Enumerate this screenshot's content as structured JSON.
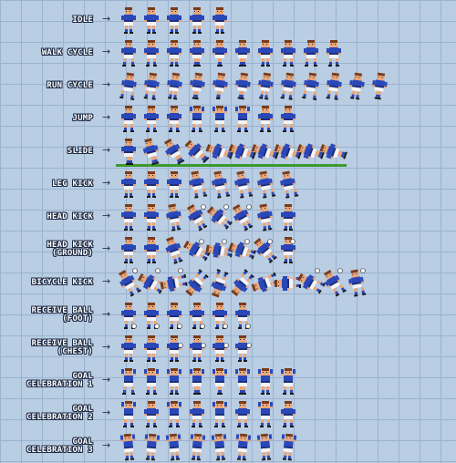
{
  "sheet": {
    "arrow": "→",
    "palette": {
      "hair": "#7a3b1a",
      "skin": "#e8a77a",
      "shirt": "#2a47b8",
      "shirt_dark": "#1b2f7c",
      "shorts": "#f4f4f4",
      "socks": "#2a47b8",
      "boots": "#1a1a1a",
      "grass": "#3c9a2e",
      "ball": "#ffffff"
    },
    "animations": [
      {
        "label": "IDLE",
        "frames": 5,
        "pose": "idle",
        "icon": "player-idle-sprite"
      },
      {
        "label": "WALK CYCLE",
        "frames": 10,
        "pose": "walk",
        "icon": "player-walk-sprite"
      },
      {
        "label": "RUN CYCLE",
        "frames": 12,
        "pose": "run",
        "icon": "player-run-sprite"
      },
      {
        "label": "JUMP",
        "frames": 8,
        "pose": "jump",
        "icon": "player-jump-sprite"
      },
      {
        "label": "SLIDE",
        "frames": 10,
        "pose": "slide",
        "icon": "player-slide-sprite"
      },
      {
        "label": "LEG KICK",
        "frames": 8,
        "pose": "kick",
        "icon": "player-leg-kick-sprite"
      },
      {
        "label": "HEAD KICK",
        "frames": 8,
        "pose": "head",
        "icon": "player-head-kick-sprite"
      },
      {
        "label": "HEAD KICK\n(GROUND)",
        "frames": 8,
        "pose": "headground",
        "icon": "player-head-kick-ground-sprite"
      },
      {
        "label": "BICYCLE KICK",
        "frames": 11,
        "pose": "bicycle",
        "icon": "player-bicycle-kick-sprite"
      },
      {
        "label": "RECEIVE BALL\n(FOOT)",
        "frames": 6,
        "pose": "receivefoot",
        "icon": "player-receive-foot-sprite"
      },
      {
        "label": "RECEIVE BALL\n(CHEST)",
        "frames": 6,
        "pose": "receivechest",
        "icon": "player-receive-chest-sprite"
      },
      {
        "label": "GOAL\nCELEBRATION 1",
        "frames": 8,
        "pose": "celebrate",
        "icon": "player-celebration-1-sprite"
      },
      {
        "label": "GOAL\nCELEBRATION 2",
        "frames": 8,
        "pose": "celebrate2",
        "icon": "player-celebration-2-sprite"
      },
      {
        "label": "GOAL\nCELEBRATION 3",
        "frames": 8,
        "pose": "celebrate3",
        "icon": "player-celebration-3-sprite"
      }
    ]
  }
}
